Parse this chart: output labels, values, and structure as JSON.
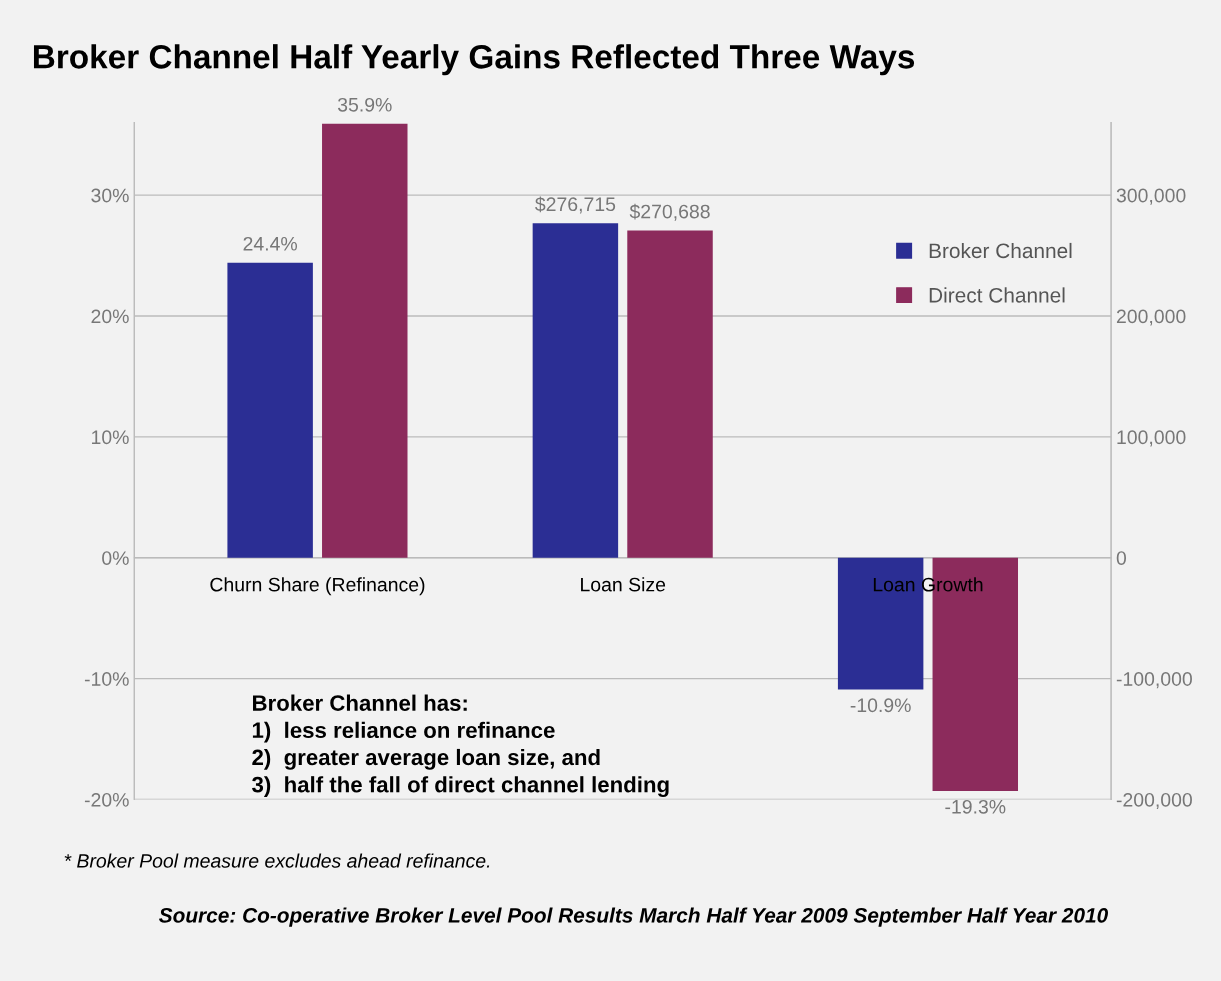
{
  "chart_data": {
    "type": "bar",
    "title": "Broker Channel Half Yearly Gains Reflected Three Ways",
    "categories": [
      "Churn Share (Refinance)",
      "Loan Size",
      "Loan Growth"
    ],
    "series": [
      {
        "name": "Broker Channel",
        "color": "#2b2e94",
        "values": [
          24.4,
          null,
          -10.9
        ],
        "value_labels": [
          "24.4%",
          null,
          "-10.9%"
        ]
      },
      {
        "name": "Direct Channel",
        "color": "#8c2b5c",
        "values": [
          35.9,
          null,
          -19.3
        ],
        "value_labels": [
          "35.9%",
          null,
          "-19.3%"
        ]
      },
      {
        "color": "#2b2e94",
        "axis": "y2",
        "values": [
          null,
          276715,
          null
        ],
        "value_labels": [
          null,
          "$276,715",
          null
        ]
      },
      {
        "color": "#8c2b5c",
        "axis": "y2",
        "values": [
          null,
          270688,
          null
        ],
        "value_labels": [
          null,
          "$270,688",
          null
        ]
      }
    ],
    "ylim": [
      -20,
      36
    ],
    "yticks": [
      {
        "value": -20,
        "label": "-20%"
      },
      {
        "value": -10,
        "label": "-10%"
      },
      {
        "value": 0,
        "label": "0%"
      },
      {
        "value": 10,
        "label": "10%"
      },
      {
        "value": 20,
        "label": "20%"
      },
      {
        "value": 30,
        "label": "30%"
      }
    ],
    "y2lim": [
      -200000,
      360000
    ],
    "y2ticks": [
      {
        "value": -200000,
        "label": "-200,000"
      },
      {
        "value": -100000,
        "label": "-100,000"
      },
      0,
      {
        "value": 100000,
        "label": "100,000"
      },
      {
        "value": 200000,
        "label": "200,000"
      },
      {
        "value": 300000,
        "label": "300,000"
      }
    ],
    "grid": "y",
    "legend": "top right",
    "annotations": [
      "Broker Channel has:\n1)  less reliance on refinance\n2)  greater average loan size, and\n3)  half the fall of direct channel lending",
      "* Broker Pool measure excludes ahead refinance.",
      "Source: Co-operative Broker Level Pool Results March Half Year 2009 September Half Year 2010"
    ]
  }
}
